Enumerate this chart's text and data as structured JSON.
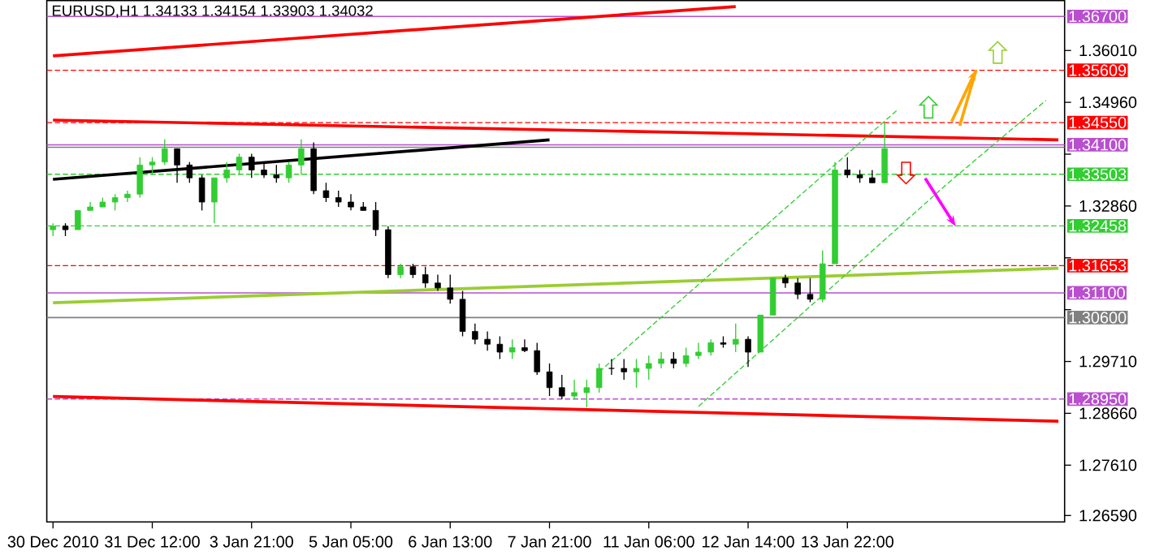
{
  "chart_data": {
    "type": "candlestick",
    "title": "EURUSD,H1  1.34133 1.34154 1.33903 1.34032",
    "categories": [
      "30 Dec 2010",
      null,
      null,
      null,
      null,
      null,
      null,
      null,
      "31 Dec 12:00",
      null,
      null,
      null,
      null,
      null,
      null,
      null,
      "3 Jan 21:00",
      null,
      null,
      null,
      null,
      null,
      null,
      null,
      "5 Jan 05:00",
      null,
      null,
      null,
      null,
      null,
      null,
      null,
      "6 Jan 13:00",
      null,
      null,
      null,
      null,
      null,
      null,
      null,
      "7 Jan 21:00",
      null,
      null,
      null,
      null,
      null,
      null,
      null,
      "11 Jan 06:00",
      null,
      null,
      null,
      null,
      null,
      null,
      null,
      "12 Jan 14:00",
      null,
      null,
      null,
      null,
      null,
      null,
      null,
      "13 Jan 22:00",
      null,
      null,
      null,
      null,
      null,
      null,
      null,
      null,
      null,
      null,
      null,
      null,
      null,
      null,
      null,
      null,
      null
    ],
    "ohlc": [
      [
        1.3238,
        1.3251,
        1.3225,
        1.3245
      ],
      [
        1.3245,
        1.3251,
        1.3225,
        1.3238
      ],
      [
        1.3238,
        1.3277,
        1.3238,
        1.3277
      ],
      [
        1.3277,
        1.3294,
        1.3277,
        1.3284
      ],
      [
        1.3284,
        1.3303,
        1.3284,
        1.3294
      ],
      [
        1.3294,
        1.331,
        1.3277,
        1.3303
      ],
      [
        1.3303,
        1.3317,
        1.3294,
        1.331
      ],
      [
        1.331,
        1.3385,
        1.3303,
        1.3369
      ],
      [
        1.3369,
        1.3385,
        1.3349,
        1.3375
      ],
      [
        1.3375,
        1.3421,
        1.3369,
        1.3402
      ],
      [
        1.3402,
        1.3402,
        1.3333,
        1.3369
      ],
      [
        1.3369,
        1.3375,
        1.3333,
        1.3343
      ],
      [
        1.3343,
        1.3349,
        1.3277,
        1.3294
      ],
      [
        1.3294,
        1.3343,
        1.3251,
        1.3343
      ],
      [
        1.3343,
        1.3375,
        1.3333,
        1.3359
      ],
      [
        1.3359,
        1.3392,
        1.3349,
        1.3385
      ],
      [
        1.3385,
        1.3392,
        1.3343,
        1.3359
      ],
      [
        1.3359,
        1.3375,
        1.3343,
        1.3349
      ],
      [
        1.3349,
        1.3369,
        1.3333,
        1.3343
      ],
      [
        1.3343,
        1.3375,
        1.3333,
        1.3369
      ],
      [
        1.3369,
        1.3421,
        1.3349,
        1.3402
      ],
      [
        1.3402,
        1.3415,
        1.331,
        1.3317
      ],
      [
        1.3317,
        1.3333,
        1.3294,
        1.3303
      ],
      [
        1.3303,
        1.3317,
        1.3284,
        1.3294
      ],
      [
        1.3294,
        1.331,
        1.3277,
        1.3284
      ],
      [
        1.3284,
        1.3294,
        1.3277,
        1.3277
      ],
      [
        1.3277,
        1.3294,
        1.3225,
        1.3238
      ],
      [
        1.3238,
        1.3245,
        1.314,
        1.3147
      ],
      [
        1.3147,
        1.3169,
        1.314,
        1.3163
      ],
      [
        1.3163,
        1.3169,
        1.314,
        1.3147
      ],
      [
        1.3147,
        1.3163,
        1.312,
        1.313
      ],
      [
        1.313,
        1.3147,
        1.3114,
        1.312
      ],
      [
        1.312,
        1.3147,
        1.3088,
        1.3097
      ],
      [
        1.3097,
        1.3114,
        1.3022,
        1.3032
      ],
      [
        1.3032,
        1.3048,
        1.3006,
        1.3016
      ],
      [
        1.3016,
        1.3032,
        1.2993,
        1.3006
      ],
      [
        1.3006,
        1.3022,
        1.2976,
        1.299
      ],
      [
        1.299,
        1.3016,
        1.2976,
        1.2999
      ],
      [
        1.2999,
        1.3016,
        1.299,
        1.2993
      ],
      [
        1.2993,
        1.3009,
        1.2944,
        1.295
      ],
      [
        1.295,
        1.2967,
        1.2901,
        1.2918
      ],
      [
        1.2918,
        1.2944,
        1.2895,
        1.2901
      ],
      [
        1.2901,
        1.2934,
        1.2895,
        1.2908
      ],
      [
        1.2908,
        1.2934,
        1.2878,
        1.2918
      ],
      [
        1.2918,
        1.2967,
        1.2908,
        1.2957
      ],
      [
        1.2957,
        1.2976,
        1.2944,
        1.2957
      ],
      [
        1.2957,
        1.2976,
        1.2934,
        1.295
      ],
      [
        1.295,
        1.2976,
        1.2918,
        1.2957
      ],
      [
        1.2957,
        1.2983,
        1.2934,
        1.2967
      ],
      [
        1.2967,
        1.299,
        1.2957,
        1.2976
      ],
      [
        1.2976,
        1.299,
        1.2957,
        1.2967
      ],
      [
        1.2967,
        1.2999,
        1.296,
        1.2983
      ],
      [
        1.2983,
        1.3009,
        1.2976,
        1.299
      ],
      [
        1.299,
        1.3016,
        1.2983,
        1.3009
      ],
      [
        1.3009,
        1.3022,
        1.2999,
        1.3006
      ],
      [
        1.3006,
        1.3048,
        1.299,
        1.3016
      ],
      [
        1.3016,
        1.3022,
        1.296,
        1.299
      ],
      [
        1.299,
        1.3065,
        1.299,
        1.3065
      ],
      [
        1.3065,
        1.314,
        1.3065,
        1.314
      ],
      [
        1.314,
        1.3147,
        1.312,
        1.313
      ],
      [
        1.313,
        1.314,
        1.3097,
        1.3107
      ],
      [
        1.3107,
        1.314,
        1.3091,
        1.3097
      ],
      [
        1.3097,
        1.3196,
        1.3091,
        1.3169
      ],
      [
        1.3169,
        1.3375,
        1.3169,
        1.3359
      ],
      [
        1.3359,
        1.3385,
        1.3343,
        1.3349
      ],
      [
        1.3349,
        1.3359,
        1.3333,
        1.3343
      ],
      [
        1.3343,
        1.3359,
        1.3333,
        1.3333
      ],
      [
        1.3333,
        1.3454,
        1.3333,
        1.3402
      ],
      null,
      null,
      null,
      null,
      null,
      null,
      null,
      null,
      null,
      null,
      null,
      null,
      null,
      null
    ],
    "colors": [
      "#32cd32",
      "#000000",
      "#32cd32",
      "#32cd32",
      "#32cd32",
      "#32cd32",
      "#32cd32",
      "#32cd32",
      "#32cd32",
      "#32cd32",
      "#000000",
      "#000000",
      "#000000",
      "#32cd32",
      "#32cd32",
      "#32cd32",
      "#000000",
      "#000000",
      "#000000",
      "#32cd32",
      "#32cd32",
      "#000000",
      "#000000",
      "#000000",
      "#000000",
      "#000000",
      "#000000",
      "#000000",
      "#32cd32",
      "#000000",
      "#000000",
      "#000000",
      "#000000",
      "#000000",
      "#000000",
      "#000000",
      "#000000",
      "#32cd32",
      "#000000",
      "#000000",
      "#000000",
      "#000000",
      "#32cd32",
      "#32cd32",
      "#32cd32",
      "#000000",
      "#000000",
      "#32cd32",
      "#32cd32",
      "#32cd32",
      "#000000",
      "#32cd32",
      "#32cd32",
      "#32cd32",
      "#000000",
      "#32cd32",
      "#000000",
      "#32cd32",
      "#32cd32",
      "#000000",
      "#000000",
      "#000000",
      "#32cd32",
      "#32cd32",
      "#000000",
      "#000000",
      "#000000",
      "#32cd32",
      null,
      null,
      null,
      null,
      null,
      null,
      null,
      null,
      null,
      null,
      null,
      null,
      null,
      null
    ],
    "series": [
      {
        "type": "line",
        "color": "#ff0000",
        "line_style": "solid",
        "values": [
          1.359,
          null,
          null,
          null,
          null,
          null,
          null,
          null,
          null,
          null,
          null,
          null,
          null,
          null,
          null,
          null,
          null,
          null,
          null,
          null,
          null,
          null,
          null,
          null,
          null,
          null,
          null,
          null,
          null,
          null,
          null,
          null,
          null,
          null,
          null,
          null,
          null,
          null,
          null,
          null,
          null,
          null,
          null,
          null,
          null,
          null,
          null,
          null,
          null,
          null,
          null,
          null,
          null,
          null,
          null,
          1.369,
          null,
          null,
          null,
          null,
          null,
          null,
          null,
          null,
          null,
          null,
          null,
          null,
          null,
          null,
          null,
          null,
          null,
          null,
          null,
          null,
          null,
          null,
          null,
          null,
          null,
          null
        ]
      },
      {
        "type": "line",
        "color": "#ff0000",
        "line_style": "solid",
        "values": [
          1.346,
          null,
          null,
          null,
          null,
          null,
          null,
          null,
          null,
          null,
          null,
          null,
          null,
          null,
          null,
          null,
          null,
          null,
          null,
          null,
          null,
          null,
          null,
          null,
          null,
          null,
          null,
          null,
          null,
          null,
          null,
          null,
          null,
          null,
          null,
          null,
          null,
          null,
          null,
          null,
          null,
          null,
          null,
          null,
          null,
          null,
          null,
          null,
          null,
          null,
          null,
          null,
          null,
          null,
          null,
          null,
          null,
          null,
          null,
          null,
          null,
          null,
          null,
          null,
          null,
          null,
          null,
          null,
          null,
          null,
          null,
          null,
          null,
          null,
          null,
          null,
          null,
          null,
          null,
          null,
          null,
          1.342
        ]
      },
      {
        "type": "line",
        "color": "#ff0000",
        "line_style": "solid",
        "values": [
          1.29,
          null,
          null,
          null,
          null,
          null,
          null,
          null,
          null,
          null,
          null,
          null,
          null,
          null,
          null,
          null,
          null,
          null,
          null,
          null,
          null,
          null,
          null,
          null,
          null,
          null,
          null,
          null,
          null,
          null,
          null,
          null,
          null,
          null,
          null,
          null,
          null,
          null,
          null,
          null,
          null,
          null,
          null,
          null,
          null,
          null,
          null,
          null,
          null,
          null,
          null,
          null,
          null,
          null,
          null,
          null,
          null,
          null,
          null,
          null,
          null,
          null,
          null,
          null,
          null,
          null,
          null,
          null,
          null,
          null,
          null,
          null,
          null,
          null,
          null,
          null,
          null,
          null,
          null,
          null,
          null,
          1.285
        ]
      },
      {
        "type": "line",
        "color": "#000000",
        "line_style": "solid",
        "values": [
          1.334,
          null,
          null,
          null,
          null,
          null,
          null,
          null,
          null,
          null,
          null,
          null,
          null,
          null,
          null,
          null,
          null,
          null,
          null,
          null,
          null,
          null,
          null,
          null,
          null,
          null,
          null,
          null,
          null,
          null,
          null,
          null,
          null,
          null,
          null,
          null,
          null,
          null,
          null,
          null,
          1.342,
          null,
          null,
          null,
          null,
          null,
          null,
          null,
          null,
          null,
          null,
          null,
          null,
          null,
          null,
          null,
          null,
          null,
          null,
          null,
          null,
          null,
          null,
          null,
          null,
          null,
          null,
          null,
          null,
          null,
          null,
          null,
          null,
          null,
          null,
          null,
          null,
          null,
          null,
          null,
          null,
          null
        ]
      },
      {
        "type": "line",
        "color": "#9acd32",
        "line_style": "solid",
        "values": [
          1.309,
          null,
          null,
          null,
          null,
          null,
          null,
          null,
          null,
          null,
          null,
          null,
          null,
          null,
          null,
          null,
          null,
          null,
          null,
          null,
          null,
          null,
          null,
          null,
          null,
          null,
          null,
          null,
          null,
          null,
          null,
          null,
          null,
          null,
          null,
          null,
          null,
          null,
          null,
          null,
          null,
          null,
          null,
          null,
          null,
          null,
          null,
          null,
          null,
          null,
          null,
          null,
          null,
          null,
          null,
          null,
          null,
          null,
          null,
          null,
          null,
          null,
          null,
          null,
          null,
          null,
          null,
          null,
          null,
          null,
          null,
          null,
          null,
          null,
          null,
          null,
          null,
          null,
          null,
          null,
          null,
          1.316
        ]
      },
      {
        "type": "line",
        "color": "#32cd32",
        "line_style": "dashed",
        "values": [
          null,
          null,
          null,
          null,
          null,
          null,
          null,
          null,
          null,
          null,
          null,
          null,
          null,
          null,
          null,
          null,
          null,
          null,
          null,
          null,
          null,
          null,
          null,
          null,
          null,
          null,
          null,
          null,
          null,
          null,
          null,
          null,
          null,
          null,
          null,
          null,
          null,
          null,
          null,
          null,
          null,
          null,
          null,
          null,
          1.295,
          null,
          null,
          null,
          null,
          null,
          null,
          null,
          null,
          null,
          null,
          null,
          null,
          null,
          null,
          null,
          null,
          null,
          null,
          null,
          null,
          null,
          null,
          null,
          1.348,
          null,
          null,
          null,
          null,
          null,
          null,
          null,
          null,
          null,
          null,
          null,
          null,
          null
        ]
      },
      {
        "type": "line",
        "color": "#32cd32",
        "line_style": "dashed",
        "values": [
          null,
          null,
          null,
          null,
          null,
          null,
          null,
          null,
          null,
          null,
          null,
          null,
          null,
          null,
          null,
          null,
          null,
          null,
          null,
          null,
          null,
          null,
          null,
          null,
          null,
          null,
          null,
          null,
          null,
          null,
          null,
          null,
          null,
          null,
          null,
          null,
          null,
          null,
          null,
          null,
          null,
          null,
          null,
          null,
          null,
          null,
          null,
          null,
          null,
          null,
          null,
          null,
          1.288,
          null,
          null,
          null,
          null,
          null,
          null,
          null,
          null,
          null,
          null,
          null,
          null,
          null,
          null,
          null,
          null,
          null,
          null,
          null,
          1.333,
          null,
          null,
          null,
          null,
          null,
          null,
          null,
          1.35,
          null
        ]
      }
    ],
    "ref_lines": [
      {
        "axis": "y",
        "value": 1.367,
        "label": "1.36700",
        "color": "#b94fcf",
        "line_style": "solid"
      },
      {
        "axis": "y",
        "value": 1.35609,
        "label": "1.35609",
        "color": "#ff0000",
        "line_style": "dashed"
      },
      {
        "axis": "y",
        "value": 1.3455,
        "label": "1.34550",
        "color": "#ff0000",
        "line_style": "dashed"
      },
      {
        "axis": "y",
        "value": 1.341,
        "label": "1.34100",
        "color": "#b94fcf",
        "line_style": "solid"
      },
      {
        "axis": "y",
        "value": 1.3405,
        "color": "#808080",
        "line_style": "solid"
      },
      {
        "axis": "y",
        "value": 1.33503,
        "label": "1.33503",
        "color": "#32cd32",
        "line_style": "dashed"
      },
      {
        "axis": "y",
        "value": 1.32458,
        "label": "1.32458",
        "color": "#32cd32",
        "line_style": "dashed"
      },
      {
        "axis": "y",
        "value": 1.31653,
        "label": "1.31653",
        "color": "#ff0000",
        "line_style": "dashed"
      },
      {
        "axis": "y",
        "value": 1.311,
        "label": "1.31100",
        "color": "#b94fcf",
        "line_style": "solid"
      },
      {
        "axis": "y",
        "value": 1.306,
        "label": "1.30600",
        "color": "#808080",
        "line_style": "solid"
      },
      {
        "axis": "y",
        "value": 1.2895,
        "label": "1.28950",
        "color": "#b94fcf",
        "line_style": "dashed"
      }
    ],
    "ylim": [
      1.2646,
      1.3702
    ],
    "yticks": [
      {
        "value": 1.3601,
        "label": "1.36010"
      },
      {
        "value": 1.3496,
        "label": "1.34960"
      },
      {
        "value": 1.3391,
        "label": null
      },
      {
        "value": 1.3286,
        "label": "1.32860"
      },
      {
        "value": 1.3181,
        "label": null
      },
      {
        "value": 1.3076,
        "label": null
      },
      {
        "value": 1.2971,
        "label": "1.29710"
      },
      {
        "value": 1.2866,
        "label": "1.28660"
      },
      {
        "value": 1.2761,
        "label": "1.27610"
      },
      {
        "value": 1.2659,
        "label": "1.26590"
      }
    ]
  }
}
